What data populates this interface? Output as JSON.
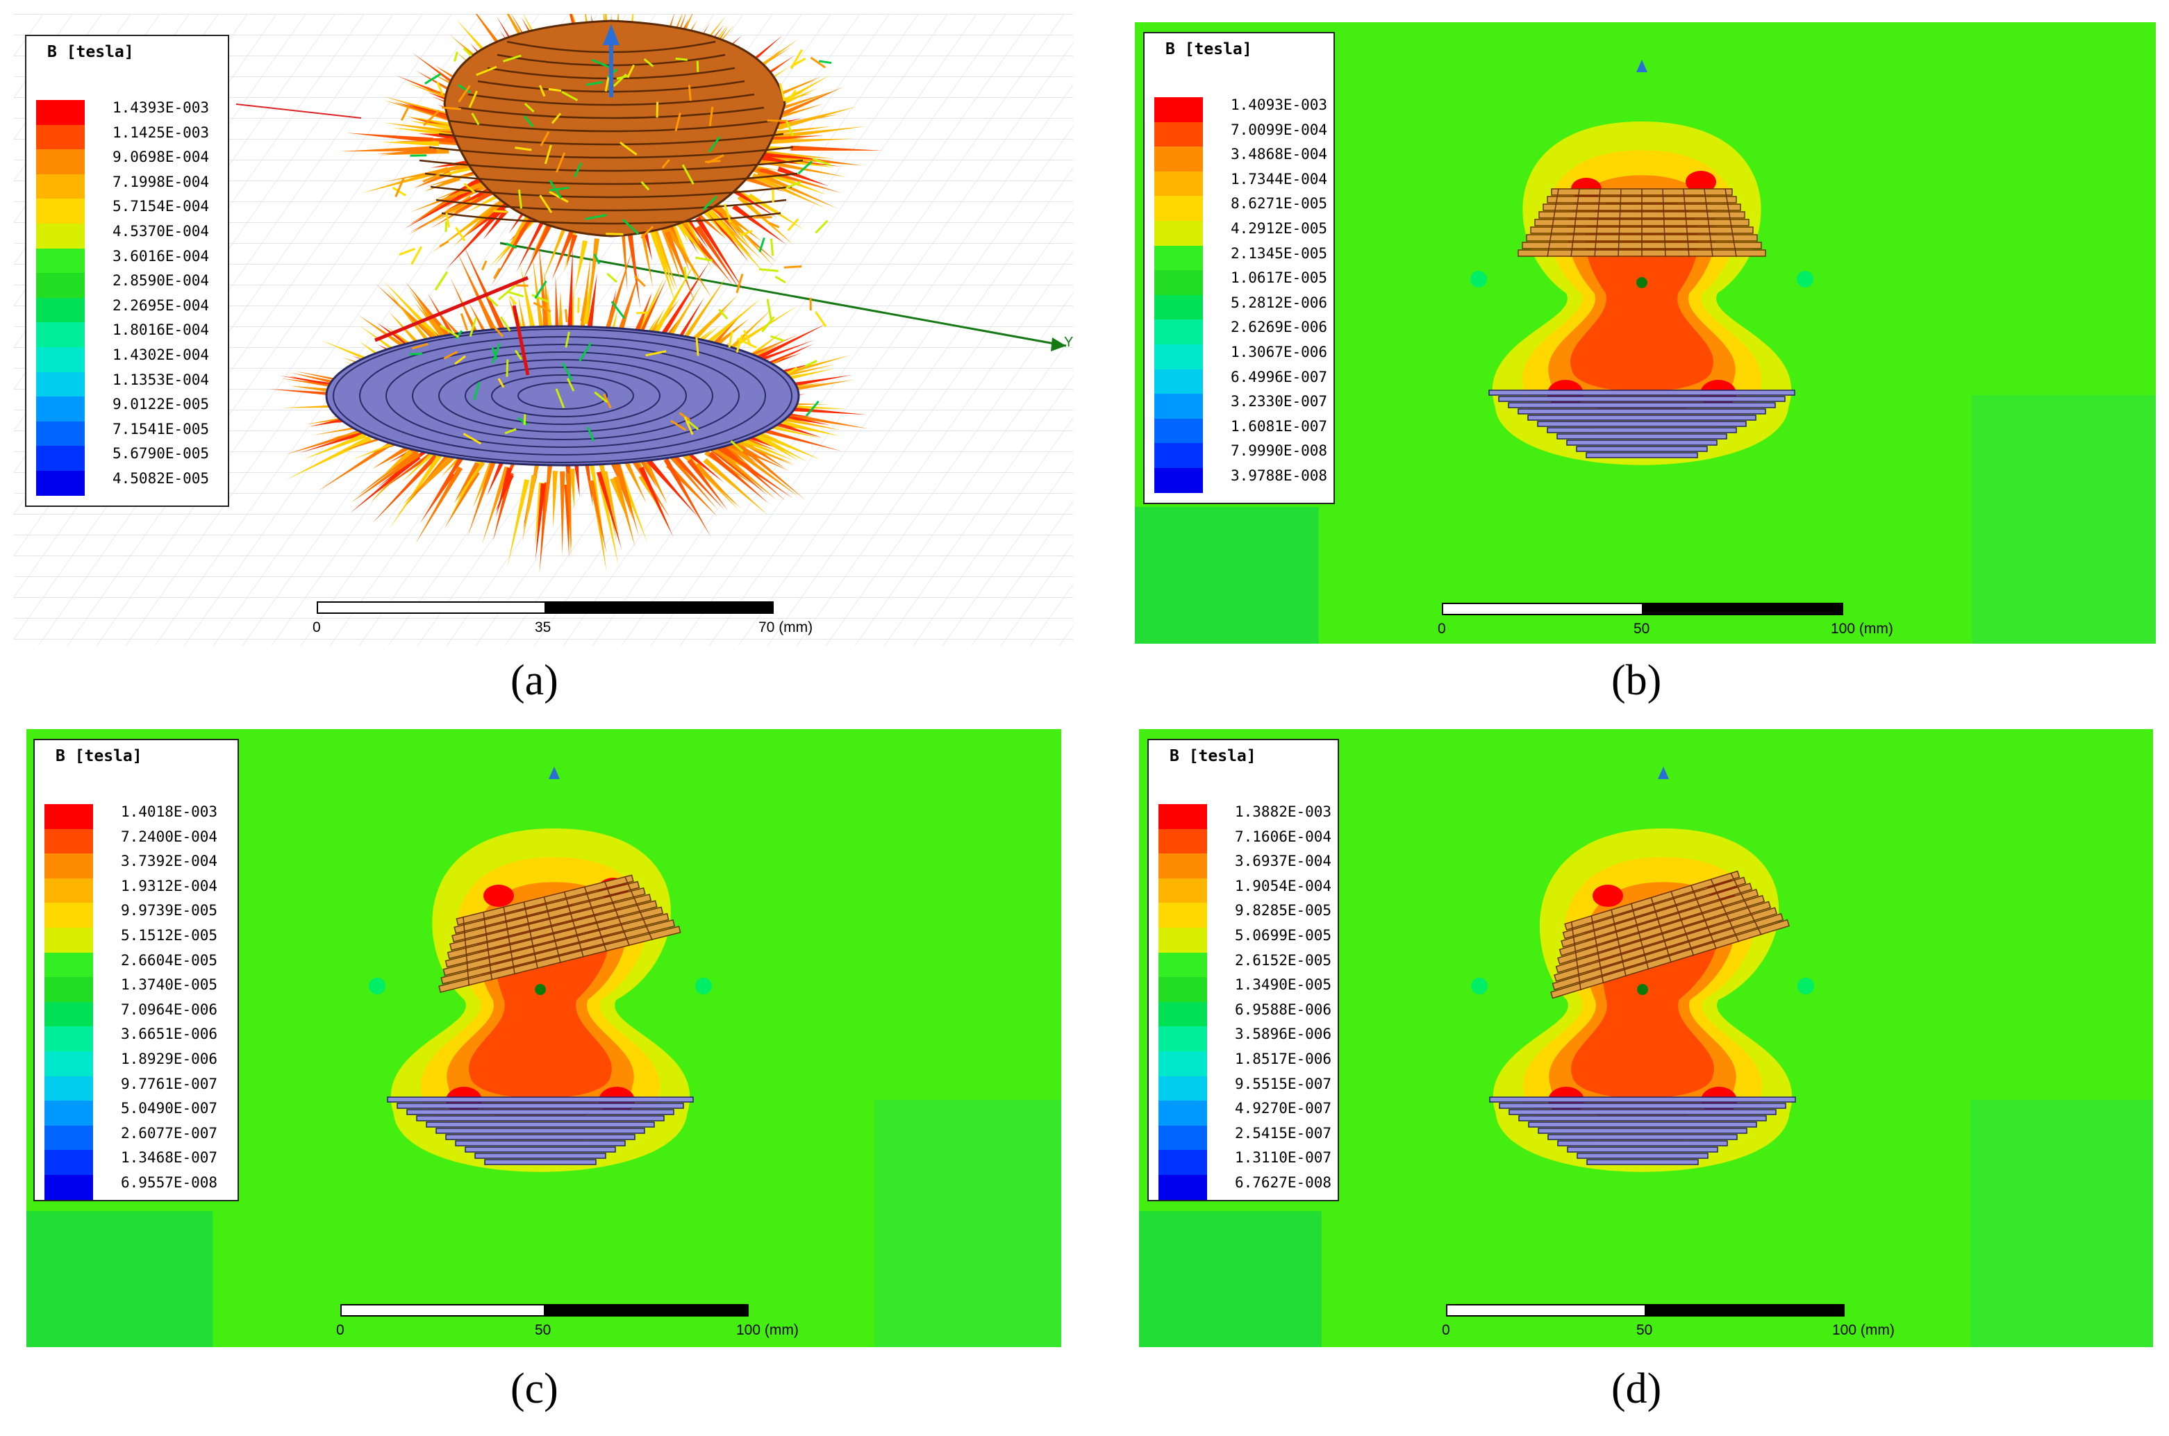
{
  "panels": [
    {
      "id": "a",
      "caption": "(a)",
      "legend_title": "B [tesla]",
      "legend_values": [
        "1.4393E-003",
        "1.1425E-003",
        "9.0698E-004",
        "7.1998E-004",
        "5.7154E-004",
        "4.5370E-004",
        "3.6016E-004",
        "2.8590E-004",
        "2.2695E-004",
        "1.8016E-004",
        "1.4302E-004",
        "1.1353E-004",
        "9.0122E-005",
        "7.1541E-005",
        "5.6790E-005",
        "4.5082E-005"
      ],
      "scale_ticks": [
        "0",
        "35",
        "70 (mm)"
      ],
      "axis_label": "Y"
    },
    {
      "id": "b",
      "caption": "(b)",
      "legend_title": "B [tesla]",
      "legend_values": [
        "1.4093E-003",
        "7.0099E-004",
        "3.4868E-004",
        "1.7344E-004",
        "8.6271E-005",
        "4.2912E-005",
        "2.1345E-005",
        "1.0617E-005",
        "5.2812E-006",
        "2.6269E-006",
        "1.3067E-006",
        "6.4996E-007",
        "3.2330E-007",
        "1.6081E-007",
        "7.9990E-008",
        "3.9788E-008"
      ],
      "scale_ticks": [
        "0",
        "50",
        "100 (mm)"
      ]
    },
    {
      "id": "c",
      "caption": "(c)",
      "legend_title": "B [tesla]",
      "legend_values": [
        "1.4018E-003",
        "7.2400E-004",
        "3.7392E-004",
        "1.9312E-004",
        "9.9739E-005",
        "5.1512E-005",
        "2.6604E-005",
        "1.3740E-005",
        "7.0964E-006",
        "3.6651E-006",
        "1.8929E-006",
        "9.7761E-007",
        "5.0490E-007",
        "2.6077E-007",
        "1.3468E-007",
        "6.9557E-008"
      ],
      "scale_ticks": [
        "0",
        "50",
        "100 (mm)"
      ]
    },
    {
      "id": "d",
      "caption": "(d)",
      "legend_title": "B [tesla]",
      "legend_values": [
        "1.3882E-003",
        "7.1606E-004",
        "3.6937E-004",
        "1.9054E-004",
        "9.8285E-005",
        "5.0699E-005",
        "2.6152E-005",
        "1.3490E-005",
        "6.9588E-006",
        "3.5896E-006",
        "1.8517E-006",
        "9.5515E-007",
        "4.9270E-007",
        "2.5415E-007",
        "1.3110E-007",
        "6.7627E-008"
      ],
      "scale_ticks": [
        "0",
        "50",
        "100 (mm)"
      ]
    }
  ],
  "colormap": [
    "#ff0000",
    "#ff4a00",
    "#ff8c00",
    "#ffb400",
    "#ffd800",
    "#d8f000",
    "#33ee22",
    "#22dd22",
    "#00e055",
    "#00ee99",
    "#00e8cc",
    "#00ccee",
    "#0099ff",
    "#0066ff",
    "#0033ff",
    "#0000ee"
  ],
  "coil_colors": {
    "top_coil": "#d2691e",
    "bottom_coil": "#7b7bc8",
    "background_field": "#44ee11"
  }
}
